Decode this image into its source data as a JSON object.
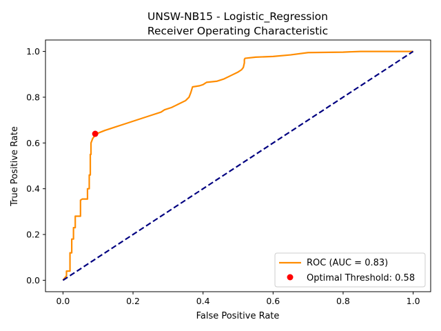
{
  "chart_data": {
    "type": "line",
    "title_line1": "UNSW-NB15 - Logistic_Regression",
    "title_line2": "Receiver Operating Characteristic",
    "xlabel": "False Positive Rate",
    "ylabel": "True Positive Rate",
    "xlim": [
      -0.05,
      1.05
    ],
    "ylim": [
      -0.05,
      1.05
    ],
    "x_ticks": [
      "0.0",
      "0.2",
      "0.4",
      "0.6",
      "0.8",
      "1.0"
    ],
    "y_ticks": [
      "0.0",
      "0.2",
      "0.4",
      "0.6",
      "0.8",
      "1.0"
    ],
    "x_tick_values": [
      0,
      0.2,
      0.4,
      0.6,
      0.8,
      1.0
    ],
    "y_tick_values": [
      0,
      0.2,
      0.4,
      0.6,
      0.8,
      1.0
    ],
    "grid": false,
    "legend_position": "lower-right",
    "series": [
      {
        "name": "ROC (AUC = 0.83)",
        "style": "solid",
        "color": "#ff8c00",
        "x": [
          0,
          0.01,
          0.01,
          0.02,
          0.02,
          0.02,
          0.025,
          0.025,
          0.03,
          0.03,
          0.035,
          0.035,
          0.04,
          0.04,
          0.05,
          0.05,
          0.055,
          0.07,
          0.07,
          0.075,
          0.075,
          0.078,
          0.078,
          0.08,
          0.08,
          0.085,
          0.095,
          0.12,
          0.15,
          0.18,
          0.21,
          0.25,
          0.28,
          0.29,
          0.31,
          0.33,
          0.35,
          0.36,
          0.365,
          0.37,
          0.39,
          0.4,
          0.405,
          0.41,
          0.44,
          0.45,
          0.46,
          0.48,
          0.5,
          0.51,
          0.515,
          0.518,
          0.518,
          0.52,
          0.55,
          0.6,
          0.65,
          0.7,
          0.8,
          0.85,
          0.9,
          1.0
        ],
        "y": [
          0,
          0.02,
          0.04,
          0.04,
          0.08,
          0.12,
          0.12,
          0.18,
          0.18,
          0.23,
          0.23,
          0.28,
          0.28,
          0.28,
          0.28,
          0.35,
          0.355,
          0.355,
          0.4,
          0.4,
          0.46,
          0.46,
          0.55,
          0.55,
          0.6,
          0.62,
          0.64,
          0.655,
          0.67,
          0.685,
          0.7,
          0.72,
          0.735,
          0.745,
          0.755,
          0.77,
          0.785,
          0.8,
          0.82,
          0.845,
          0.85,
          0.855,
          0.86,
          0.865,
          0.87,
          0.875,
          0.88,
          0.895,
          0.91,
          0.92,
          0.93,
          0.95,
          0.965,
          0.97,
          0.975,
          0.978,
          0.985,
          0.995,
          0.997,
          1.0,
          1.0,
          1.0
        ]
      },
      {
        "name": "",
        "style": "dashed",
        "color": "#000080",
        "x": [
          0,
          1
        ],
        "y": [
          0,
          1
        ]
      }
    ],
    "markers": [
      {
        "name": "Optimal Threshold: 0.58",
        "x": 0.092,
        "y": 0.64,
        "color": "#ff0000"
      }
    ]
  }
}
